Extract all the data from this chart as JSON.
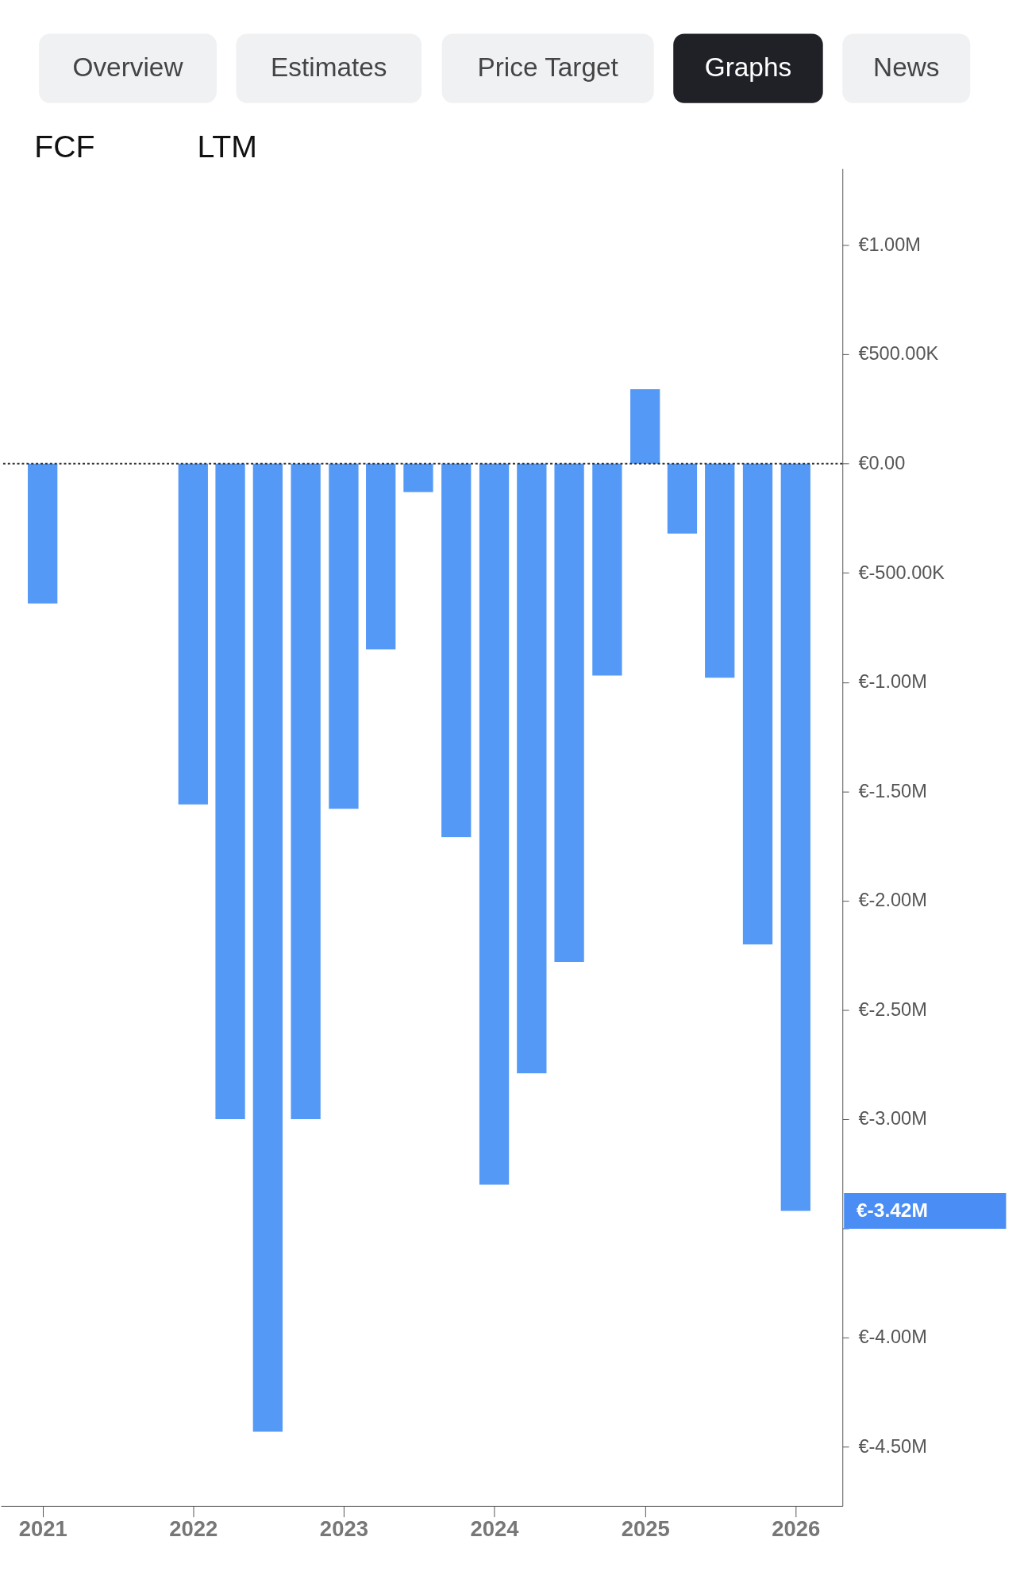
{
  "chart_data": {
    "type": "bar",
    "color": "#5599f7",
    "x": [
      "2021-01-01",
      "2022-01-01",
      "2022-04-01",
      "2022-07-01",
      "2022-10-01",
      "2023-01-01",
      "2023-04-01",
      "2023-07-01",
      "2023-10-01",
      "2024-01-01",
      "2024-04-01",
      "2024-07-01",
      "2024-10-01",
      "2025-01-01",
      "2025-04-01",
      "2025-07-01",
      "2025-10-01",
      "2026-01-01"
    ],
    "values": [
      -640000,
      -1560000,
      -3000000,
      -4430000,
      -3000000,
      -1580000,
      -850000,
      -130000,
      -1710000,
      -3300000,
      -2790000,
      -2280000,
      -970000,
      340000,
      -320000,
      -980000,
      -2200000,
      -3420000
    ],
    "xlim": [
      "2020-10-01",
      "2026-04-15"
    ],
    "xticks": [
      {
        "value": "2021-01-01",
        "label": "2021"
      },
      {
        "value": "2022-01-01",
        "label": "2022"
      },
      {
        "value": "2023-01-01",
        "label": "2023"
      },
      {
        "value": "2024-01-01",
        "label": "2024"
      },
      {
        "value": "2025-01-01",
        "label": "2025"
      },
      {
        "value": "2026-01-01",
        "label": "2026"
      }
    ],
    "ylim": [
      -4770000,
      1350000
    ],
    "yticks": [
      {
        "value": 1000000,
        "label": "€1.00M"
      },
      {
        "value": 500000,
        "label": "€500.00K"
      },
      {
        "value": 0,
        "label": "€0.00"
      },
      {
        "value": -500000,
        "label": "€-500.00K"
      },
      {
        "value": -1000000,
        "label": "€-1.00M"
      },
      {
        "value": -1500000,
        "label": "€-1.50M"
      },
      {
        "value": -2000000,
        "label": "€-2.00M"
      },
      {
        "value": -2500000,
        "label": "€-2.50M"
      },
      {
        "value": -3000000,
        "label": "€-3.00M"
      },
      {
        "value": -3500000,
        "label": null
      },
      {
        "value": -4000000,
        "label": "€-4.00M"
      },
      {
        "value": -4500000,
        "label": "€-4.50M"
      }
    ],
    "ref_lines": [
      {
        "axis": "y",
        "value": 0,
        "line_style": "dotted",
        "color": "#333333"
      }
    ],
    "grid": false,
    "annotations": [
      "Overview",
      "Estimates",
      "Price Target",
      "Graphs",
      "News",
      "FCF",
      "LTM",
      "€-3.42M"
    ]
  }
}
